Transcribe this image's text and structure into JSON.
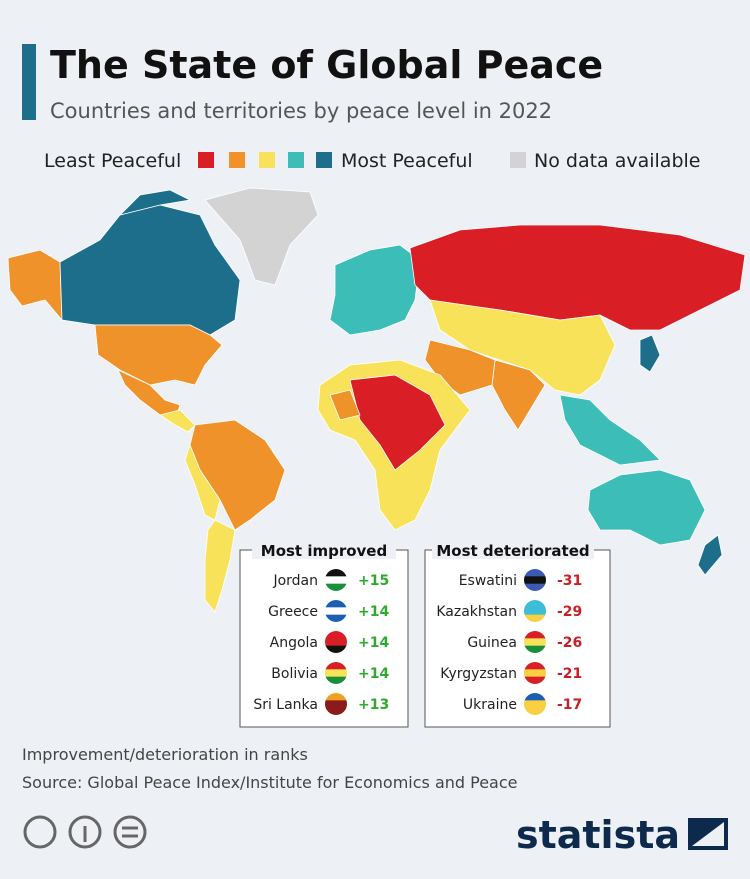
{
  "header": {
    "title": "The State of Global Peace",
    "subtitle": "Countries and territories by peace level in 2022"
  },
  "legend": {
    "least": "Least Peaceful",
    "most": "Most Peaceful",
    "no_data": "No data available"
  },
  "most_improved": {
    "title": "Most improved",
    "rows": [
      {
        "country": "Jordan",
        "change": "+15"
      },
      {
        "country": "Greece",
        "change": "+14"
      },
      {
        "country": "Angola",
        "change": "+14"
      },
      {
        "country": "Bolivia",
        "change": "+14"
      },
      {
        "country": "Sri Lanka",
        "change": "+13"
      }
    ]
  },
  "most_deteriorated": {
    "title": "Most deteriorated",
    "rows": [
      {
        "country": "Eswatini",
        "change": "-31"
      },
      {
        "country": "Kazakhstan",
        "change": "-29"
      },
      {
        "country": "Guinea",
        "change": "-26"
      },
      {
        "country": "Kyrgyzstan",
        "change": "-21"
      },
      {
        "country": "Ukraine",
        "change": "-17"
      }
    ]
  },
  "footer": {
    "note": "Improvement/deterioration in ranks",
    "source": "Source: Global Peace Index/Institute for Economics and Peace"
  },
  "brand": "statista"
}
